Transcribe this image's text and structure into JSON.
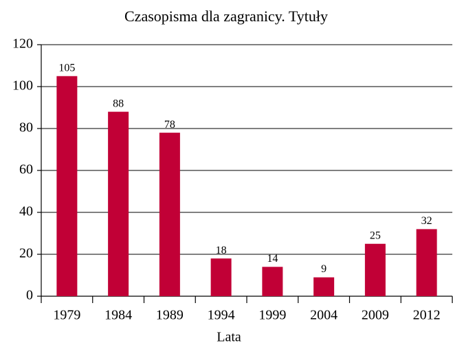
{
  "chart_data": {
    "type": "bar",
    "title": "Czasopisma dla zagranicy. Tytuły",
    "x_label": "Lata",
    "categories": [
      "1979",
      "1984",
      "1989",
      "1994",
      "1999",
      "2004",
      "2009",
      "2012"
    ],
    "values": [
      105,
      88,
      78,
      18,
      14,
      9,
      25,
      32
    ],
    "color": "#c10036",
    "ylim": [
      0,
      120
    ],
    "yticks": [
      0,
      20,
      40,
      60,
      80,
      100,
      120
    ],
    "grid": true
  }
}
